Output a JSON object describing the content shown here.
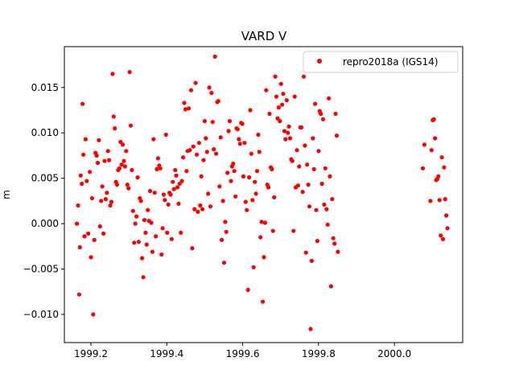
{
  "chart_data": {
    "type": "scatter",
    "title": "VARD V",
    "xlabel": "",
    "ylabel": "m",
    "xlim": [
      1999.13,
      2000.18
    ],
    "ylim": [
      -0.0131,
      0.0195
    ],
    "xticks": [
      1999.2,
      1999.4,
      1999.6,
      1999.8,
      2000.0
    ],
    "xtick_labels": [
      "1999.2",
      "1999.4",
      "1999.6",
      "1999.8",
      "2000.0"
    ],
    "yticks": [
      -0.01,
      -0.005,
      0.0,
      0.005,
      0.01,
      0.015
    ],
    "ytick_labels": [
      "−0.010",
      "−0.005",
      "0.000",
      "0.005",
      "0.010",
      "0.015"
    ],
    "legend_position": "top-right",
    "grid": false,
    "series": [
      {
        "name": "repro2018a (IGS14)",
        "color": "#ff0000",
        "marker": "circle",
        "points": [
          [
            1999.163,
            0.0
          ],
          [
            1999.166,
            0.002
          ],
          [
            1999.169,
            -0.0078
          ],
          [
            1999.171,
            -0.0026
          ],
          [
            1999.173,
            0.0053
          ],
          [
            1999.176,
            0.0044
          ],
          [
            1999.178,
            0.0132
          ],
          [
            1999.18,
            0.0076
          ],
          [
            1999.183,
            -0.0014
          ],
          [
            1999.186,
            0.0093
          ],
          [
            1999.189,
            0.0047
          ],
          [
            1999.193,
            -0.0011
          ],
          [
            1999.197,
            0.0057
          ],
          [
            1999.2,
            -0.0037
          ],
          [
            1999.203,
            0.0028
          ],
          [
            1999.206,
            -0.01
          ],
          [
            1999.209,
            -0.0018
          ],
          [
            1999.212,
            0.0078
          ],
          [
            1999.215,
            0.0075
          ],
          [
            1999.218,
            0.0067
          ],
          [
            1999.221,
            0.0092
          ],
          [
            1999.224,
            -0.0003
          ],
          [
            1999.227,
            0.0025
          ],
          [
            1999.23,
            0.0041
          ],
          [
            1999.233,
            -0.0011
          ],
          [
            1999.236,
            0.0069
          ],
          [
            1999.239,
            0.0027
          ],
          [
            1999.242,
            0.0034
          ],
          [
            1999.245,
            0.008
          ],
          [
            1999.248,
            0.007
          ],
          [
            1999.251,
            0.002
          ],
          [
            1999.254,
            0.0024
          ],
          [
            1999.257,
            0.0165
          ],
          [
            1999.26,
            0.0118
          ],
          [
            1999.263,
            0.0105
          ],
          [
            1999.266,
            0.0046
          ],
          [
            1999.269,
            0.0043
          ],
          [
            1999.272,
            0.0059
          ],
          [
            1999.275,
            0.0061
          ],
          [
            1999.278,
            0.009
          ],
          [
            1999.281,
            0.0065
          ],
          [
            1999.284,
            0.0087
          ],
          [
            1999.287,
            0.0069
          ],
          [
            1999.29,
            0.0063
          ],
          [
            1999.293,
            0.008
          ],
          [
            1999.296,
            0.0043
          ],
          [
            1999.299,
            0.0039
          ],
          [
            1999.302,
            0.0167
          ],
          [
            1999.305,
            0.0108
          ],
          [
            1999.308,
            0.0059
          ],
          [
            1999.311,
            0.0014
          ],
          [
            1999.314,
            -0.0021
          ],
          [
            1999.317,
            0.0
          ],
          [
            1999.32,
            0.0008
          ],
          [
            1999.323,
            0.0051
          ],
          [
            1999.326,
            -0.002
          ],
          [
            1999.329,
            0.0028
          ],
          [
            1999.332,
            0.0025
          ],
          [
            1999.335,
            -0.0038
          ],
          [
            1999.338,
            -0.0059
          ],
          [
            1999.341,
            0.0004
          ],
          [
            1999.344,
            -0.001
          ],
          [
            1999.347,
            -0.0023
          ],
          [
            1999.35,
            0.0015
          ],
          [
            1999.353,
            0.0003
          ],
          [
            1999.356,
            0.0036
          ],
          [
            1999.359,
            0.0001
          ],
          [
            1999.362,
            -0.0031
          ],
          [
            1999.365,
            0.0093
          ],
          [
            1999.368,
            0.0034
          ],
          [
            1999.371,
            -0.0014
          ],
          [
            1999.374,
            0.006
          ],
          [
            1999.377,
            0.0072
          ],
          [
            1999.38,
            0.0064
          ],
          [
            1999.383,
            0.0061
          ],
          [
            1999.386,
            -0.0034
          ],
          [
            1999.389,
            -0.0005
          ],
          [
            1999.392,
            0.0032
          ],
          [
            1999.395,
            0.0026
          ],
          [
            1999.398,
            0.0098
          ],
          [
            1999.401,
            -0.001
          ],
          [
            1999.404,
            0.0021
          ],
          [
            1999.407,
            0.0034
          ],
          [
            1999.41,
            0.0032
          ],
          [
            1999.413,
            -0.0017
          ],
          [
            1999.416,
            0.0046
          ],
          [
            1999.419,
            0.0038
          ],
          [
            1999.422,
            0.0059
          ],
          [
            1999.425,
            0.0053
          ],
          [
            1999.428,
            0.004
          ],
          [
            1999.431,
            0.0022
          ],
          [
            1999.434,
            0.0044
          ],
          [
            1999.437,
            -0.001
          ],
          [
            1999.44,
            0.0047
          ],
          [
            1999.443,
            0.0073
          ],
          [
            1999.446,
            0.0133
          ],
          [
            1999.449,
            0.0126
          ],
          [
            1999.452,
            0.0058
          ],
          [
            1999.455,
            0.008
          ],
          [
            1999.458,
            0.0127
          ],
          [
            1999.461,
            0.0081
          ],
          [
            1999.464,
            0.0147
          ],
          [
            1999.467,
            -0.0027
          ],
          [
            1999.47,
            0.0085
          ],
          [
            1999.473,
            0.0016
          ],
          [
            1999.476,
            0.0155
          ],
          [
            1999.479,
            0.0076
          ],
          [
            1999.482,
            0.0013
          ],
          [
            1999.485,
            0.0089
          ],
          [
            1999.488,
            0.002
          ],
          [
            1999.491,
            0.0052
          ],
          [
            1999.494,
            0.0016
          ],
          [
            1999.497,
            0.007
          ],
          [
            1999.5,
            0.0113
          ],
          [
            1999.503,
            0.0094
          ],
          [
            1999.506,
            0.0079
          ],
          [
            1999.509,
            0.0033
          ],
          [
            1999.512,
            0.015
          ],
          [
            1999.515,
            0.0019
          ],
          [
            1999.518,
            0.0144
          ],
          [
            1999.521,
            0.0112
          ],
          [
            1999.524,
            0.0082
          ],
          [
            1999.527,
            0.0184
          ],
          [
            1999.53,
            0.0077
          ],
          [
            1999.533,
            0.0134
          ],
          [
            1999.536,
            0.0135
          ],
          [
            1999.539,
            0.0041
          ],
          [
            1999.542,
            0.0095
          ],
          [
            1999.545,
            -0.0018
          ],
          [
            1999.548,
            0.0025
          ],
          [
            1999.551,
            -0.0043
          ],
          [
            1999.554,
            0.0002
          ],
          [
            1999.557,
            -0.0009
          ],
          [
            1999.56,
            0.0056
          ],
          [
            1999.563,
            0.0102
          ],
          [
            1999.566,
            0.0113
          ],
          [
            1999.569,
            0.0047
          ],
          [
            1999.572,
            0.0063
          ],
          [
            1999.575,
            0.0066
          ],
          [
            1999.578,
            0.0058
          ],
          [
            1999.581,
            0.003
          ],
          [
            1999.584,
            0.0105
          ],
          [
            1999.587,
            0.0104
          ],
          [
            1999.59,
            0.0093
          ],
          [
            1999.593,
            0.0088
          ],
          [
            1999.596,
            0.0111
          ],
          [
            1999.599,
            0.011
          ],
          [
            1999.602,
            0.0052
          ],
          [
            1999.605,
            0.0089
          ],
          [
            1999.608,
            0.0024
          ],
          [
            1999.611,
            0.0015
          ],
          [
            1999.614,
            -0.0073
          ],
          [
            1999.617,
            0.0051
          ],
          [
            1999.62,
            0.0125
          ],
          [
            1999.623,
            0.0077
          ],
          [
            1999.626,
            0.0026
          ],
          [
            1999.629,
            -0.0048
          ],
          [
            1999.632,
            0.0046
          ],
          [
            1999.635,
            0.0033
          ],
          [
            1999.638,
            0.0058
          ],
          [
            1999.641,
            0.0098
          ],
          [
            1999.644,
            0.0079
          ],
          [
            1999.647,
            -0.0015
          ],
          [
            1999.65,
            0.0002
          ],
          [
            1999.653,
            -0.0086
          ],
          [
            1999.656,
            -0.0037
          ],
          [
            1999.659,
            0.0001
          ],
          [
            1999.662,
            0.0147
          ],
          [
            1999.665,
            0.0043
          ],
          [
            1999.668,
            0.004
          ],
          [
            1999.671,
            0.0121
          ],
          [
            1999.674,
            0.0062
          ],
          [
            1999.677,
            0.006
          ],
          [
            1999.68,
            -0.0008
          ],
          [
            1999.683,
            0.0029
          ],
          [
            1999.686,
            0.0162
          ],
          [
            1999.689,
            0.014
          ],
          [
            1999.692,
            0.0116
          ],
          [
            1999.695,
            0.0128
          ],
          [
            1999.698,
            0.0113
          ],
          [
            1999.701,
            0.0154
          ],
          [
            1999.704,
            0.0131
          ],
          [
            1999.707,
            0.0143
          ],
          [
            1999.71,
            0.0102
          ],
          [
            1999.713,
            0.0093
          ],
          [
            1999.716,
            0.0136
          ],
          [
            1999.719,
            0.01
          ],
          [
            1999.722,
            0.0107
          ],
          [
            1999.725,
            0.0094
          ],
          [
            1999.728,
            0.0071
          ],
          [
            1999.731,
            0.0069
          ],
          [
            1999.734,
            -0.0008
          ],
          [
            1999.737,
            0.014
          ],
          [
            1999.74,
            0.004
          ],
          [
            1999.743,
            0.0081
          ],
          [
            1999.746,
            0.0042
          ],
          [
            1999.749,
            0.0063
          ],
          [
            1999.752,
            0.0106
          ],
          [
            1999.755,
            0.0106
          ],
          [
            1999.758,
            0.0035
          ],
          [
            1999.761,
            0.0162
          ],
          [
            1999.764,
            0.0086
          ],
          [
            1999.767,
            -0.0032
          ],
          [
            1999.77,
            0.0065
          ],
          [
            1999.773,
            0.0043
          ],
          [
            1999.776,
            0.0019
          ],
          [
            1999.779,
            -0.0116
          ],
          [
            1999.782,
            -0.0041
          ],
          [
            1999.785,
            0.0094
          ],
          [
            1999.788,
            0.006
          ],
          [
            1999.791,
            0.0132
          ],
          [
            1999.794,
            0.0015
          ],
          [
            1999.797,
            -0.0019
          ],
          [
            1999.8,
            0.008
          ],
          [
            1999.803,
            0.0124
          ],
          [
            1999.806,
            0.0121
          ],
          [
            1999.809,
            0.0044
          ],
          [
            1999.812,
            0.0115
          ],
          [
            1999.815,
            0.0021
          ],
          [
            1999.818,
            0.0061
          ],
          [
            1999.821,
            0.0016
          ],
          [
            1999.824,
            -0.0001
          ],
          [
            1999.827,
            0.0138
          ],
          [
            1999.83,
            0.0052
          ],
          [
            1999.833,
            -0.0069
          ],
          [
            1999.836,
            0.0027
          ],
          [
            1999.839,
            -0.0016
          ],
          [
            1999.842,
            -0.0022
          ],
          [
            1999.845,
            0.0121
          ],
          [
            1999.848,
            0.0097
          ],
          [
            1999.851,
            -0.0031
          ],
          [
            2000.075,
            0.0061
          ],
          [
            2000.079,
            0.0087
          ],
          [
            2000.095,
            0.0025
          ],
          [
            2000.098,
            0.0081
          ],
          [
            2000.101,
            0.0114
          ],
          [
            2000.104,
            0.0115
          ],
          [
            2000.107,
            0.0094
          ],
          [
            2000.11,
            0.0048
          ],
          [
            2000.113,
            0.0049
          ],
          [
            2000.116,
            0.0052
          ],
          [
            2000.119,
            0.0026
          ],
          [
            2000.122,
            -0.0013
          ],
          [
            2000.125,
            0.0073
          ],
          [
            2000.128,
            -0.0017
          ],
          [
            2000.131,
            0.0062
          ],
          [
            2000.134,
            0.0027
          ],
          [
            2000.137,
            0.0009
          ],
          [
            2000.14,
            -0.0005
          ]
        ]
      }
    ]
  }
}
